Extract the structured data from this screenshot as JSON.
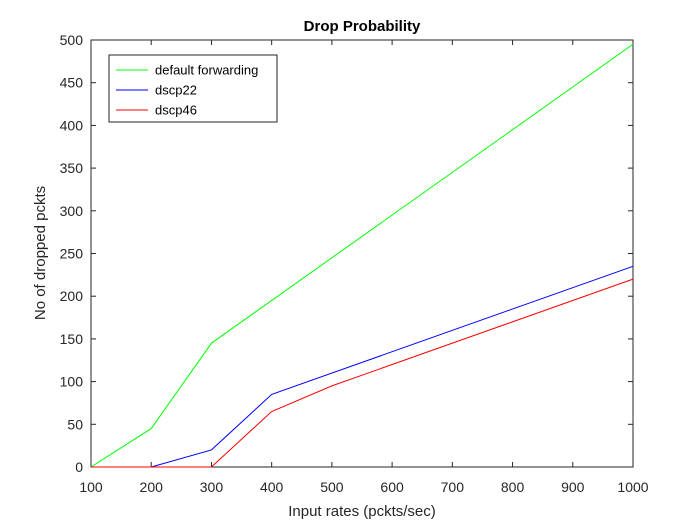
{
  "chart_data": {
    "type": "line",
    "title": "Drop Probability",
    "xlabel": "Input rates (pckts/sec)",
    "ylabel": "No of dropped pckts",
    "xlim": [
      100,
      1000
    ],
    "ylim": [
      0,
      500
    ],
    "x_ticks": [
      100,
      200,
      300,
      400,
      500,
      600,
      700,
      800,
      900,
      1000
    ],
    "y_ticks": [
      0,
      50,
      100,
      150,
      200,
      250,
      300,
      350,
      400,
      450,
      500
    ],
    "grid": false,
    "legend_position": "top-left",
    "series": [
      {
        "name": "default forwarding",
        "color": "#00ff00",
        "x": [
          100,
          200,
          300,
          1000
        ],
        "y": [
          0,
          45,
          145,
          495
        ]
      },
      {
        "name": "dscp22",
        "color": "#0000ff",
        "x": [
          100,
          200,
          300,
          400,
          1000
        ],
        "y": [
          0,
          0,
          20,
          85,
          235
        ]
      },
      {
        "name": "dscp46",
        "color": "#ff0000",
        "x": [
          100,
          300,
          400,
          500,
          1000
        ],
        "y": [
          0,
          0,
          65,
          95,
          220
        ]
      }
    ]
  }
}
